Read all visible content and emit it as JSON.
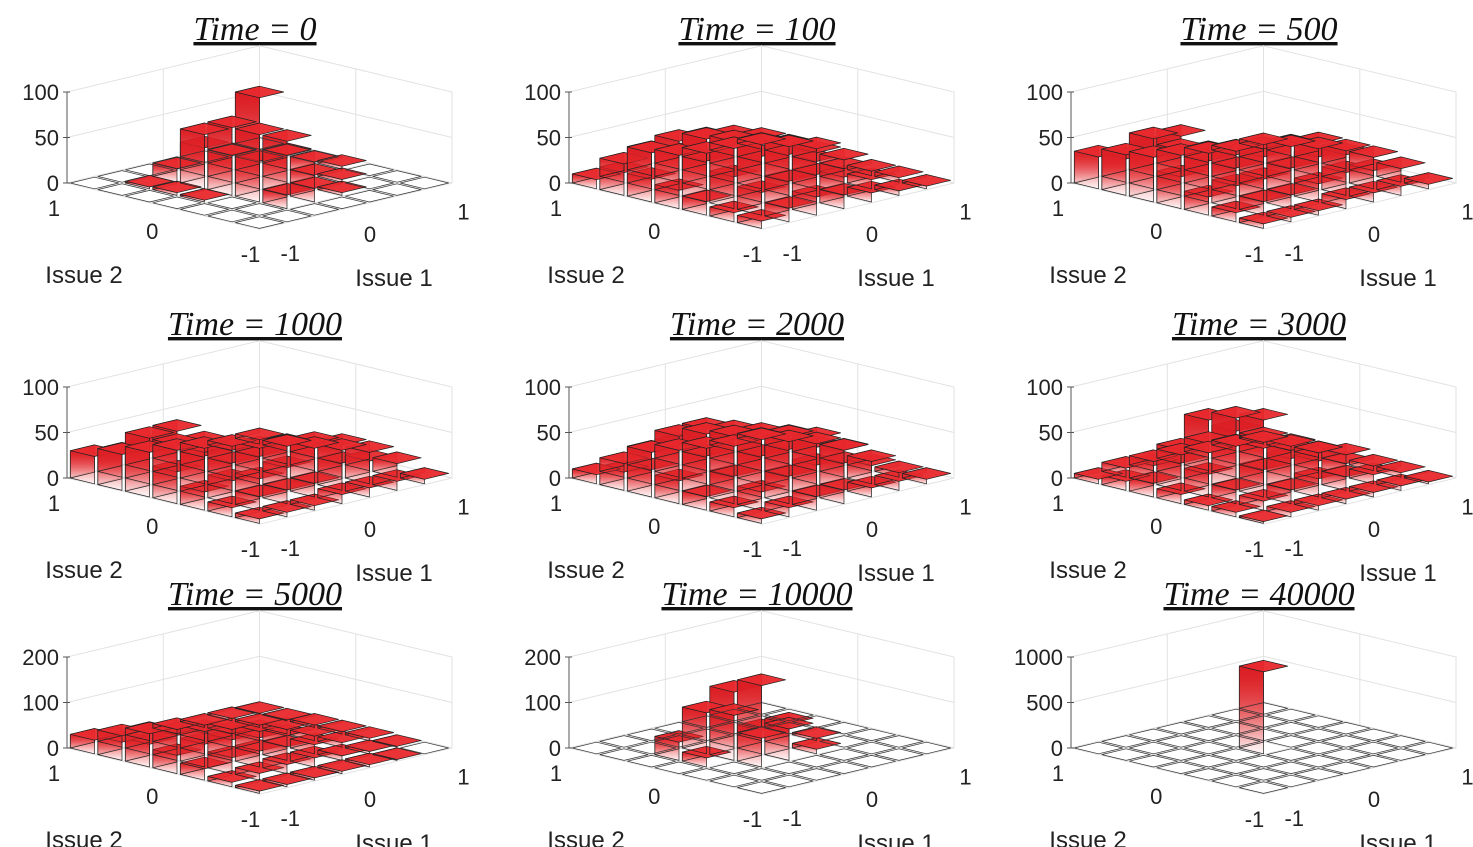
{
  "figure": {
    "xlabel": "Issue 1",
    "ylabel": "Issue 2",
    "x_ticks": [
      "-1",
      "0",
      "1"
    ],
    "y_ticks": [
      "1",
      "0",
      "-1"
    ],
    "bar_color": "#e8282c"
  },
  "chart_data": [
    {
      "type": "bar3d",
      "title": "Time = 0",
      "zlim": [
        0,
        100
      ],
      "z_ticks": [
        "0",
        "50",
        "100"
      ],
      "grid": true,
      "values": [
        [
          0,
          0,
          0,
          0,
          0,
          0,
          0
        ],
        [
          0,
          2,
          3,
          2,
          0,
          0,
          0
        ],
        [
          0,
          15,
          45,
          45,
          45,
          15,
          0
        ],
        [
          0,
          45,
          60,
          100,
          45,
          15,
          0
        ],
        [
          0,
          15,
          45,
          45,
          15,
          3,
          0
        ],
        [
          0,
          0,
          15,
          15,
          3,
          0,
          0
        ],
        [
          0,
          0,
          0,
          3,
          0,
          0,
          0
        ]
      ]
    },
    {
      "type": "bar3d",
      "title": "Time = 100",
      "zlim": [
        0,
        100
      ],
      "z_ticks": [
        "0",
        "50",
        "100"
      ],
      "grid": true,
      "values": [
        [
          10,
          25,
          25,
          20,
          15,
          10,
          8
        ],
        [
          20,
          40,
          45,
          45,
          35,
          25,
          15
        ],
        [
          25,
          45,
          55,
          55,
          50,
          30,
          20
        ],
        [
          15,
          40,
          50,
          50,
          45,
          30,
          15
        ],
        [
          10,
          30,
          40,
          40,
          30,
          20,
          10
        ],
        [
          8,
          20,
          25,
          25,
          15,
          10,
          5
        ],
        [
          5,
          10,
          15,
          10,
          5,
          5,
          3
        ]
      ]
    },
    {
      "type": "bar3d",
      "title": "Time = 500",
      "zlim": [
        0,
        100
      ],
      "z_ticks": [
        "0",
        "50",
        "100"
      ],
      "grid": true,
      "values": [
        [
          35,
          40,
          60,
          35,
          20,
          10,
          5
        ],
        [
          30,
          55,
          65,
          45,
          25,
          15,
          5
        ],
        [
          20,
          35,
          40,
          30,
          25,
          15,
          5
        ],
        [
          15,
          25,
          30,
          35,
          30,
          20,
          10
        ],
        [
          10,
          20,
          30,
          40,
          35,
          25,
          10
        ],
        [
          5,
          15,
          25,
          35,
          30,
          20,
          10
        ],
        [
          5,
          10,
          15,
          20,
          20,
          15,
          5
        ]
      ]
    },
    {
      "type": "bar3d",
      "title": "Time = 1000",
      "zlim": [
        0,
        100
      ],
      "z_ticks": [
        "0",
        "50",
        "100"
      ],
      "grid": true,
      "values": [
        [
          30,
          40,
          55,
          35,
          20,
          10,
          5
        ],
        [
          25,
          50,
          65,
          45,
          25,
          15,
          5
        ],
        [
          20,
          35,
          45,
          30,
          20,
          15,
          5
        ],
        [
          15,
          20,
          30,
          30,
          25,
          15,
          10
        ],
        [
          10,
          15,
          25,
          35,
          40,
          30,
          10
        ],
        [
          5,
          10,
          20,
          30,
          35,
          25,
          10
        ],
        [
          5,
          5,
          10,
          15,
          20,
          15,
          5
        ]
      ]
    },
    {
      "type": "bar3d",
      "title": "Time = 2000",
      "zlim": [
        0,
        100
      ],
      "z_ticks": [
        "0",
        "50",
        "100"
      ],
      "grid": true,
      "values": [
        [
          10,
          20,
          30,
          25,
          15,
          10,
          5
        ],
        [
          15,
          35,
          50,
          45,
          30,
          20,
          10
        ],
        [
          20,
          45,
          60,
          55,
          45,
          30,
          15
        ],
        [
          15,
          40,
          50,
          50,
          45,
          35,
          15
        ],
        [
          10,
          30,
          40,
          45,
          40,
          30,
          10
        ],
        [
          5,
          20,
          30,
          35,
          30,
          20,
          10
        ],
        [
          5,
          10,
          15,
          15,
          10,
          5,
          5
        ]
      ]
    },
    {
      "type": "bar3d",
      "title": "Time = 3000",
      "zlim": [
        0,
        100
      ],
      "z_ticks": [
        "0",
        "50",
        "100"
      ],
      "grid": true,
      "values": [
        [
          5,
          10,
          15,
          10,
          5,
          5,
          2
        ],
        [
          10,
          20,
          30,
          25,
          15,
          10,
          5
        ],
        [
          10,
          30,
          70,
          65,
          30,
          15,
          5
        ],
        [
          10,
          30,
          65,
          70,
          35,
          20,
          5
        ],
        [
          5,
          20,
          35,
          35,
          25,
          15,
          5
        ],
        [
          5,
          10,
          15,
          20,
          15,
          10,
          5
        ],
        [
          2,
          5,
          5,
          10,
          5,
          5,
          2
        ]
      ]
    },
    {
      "type": "bar3d",
      "title": "Time = 5000",
      "zlim": [
        0,
        200
      ],
      "z_ticks": [
        "0",
        "100",
        "200"
      ],
      "grid": true,
      "values": [
        [
          30,
          40,
          50,
          40,
          25,
          10,
          5
        ],
        [
          25,
          45,
          55,
          50,
          35,
          15,
          5
        ],
        [
          15,
          30,
          45,
          45,
          35,
          20,
          5
        ],
        [
          10,
          20,
          30,
          35,
          30,
          20,
          5
        ],
        [
          5,
          10,
          20,
          25,
          20,
          10,
          5
        ],
        [
          5,
          5,
          10,
          10,
          10,
          5,
          2
        ],
        [
          2,
          2,
          5,
          5,
          5,
          2,
          0
        ]
      ]
    },
    {
      "type": "bar3d",
      "title": "Time = 10000",
      "zlim": [
        0,
        200
      ],
      "z_ticks": [
        "0",
        "100",
        "200"
      ],
      "grid": true,
      "values": [
        [
          0,
          0,
          0,
          0,
          0,
          0,
          0
        ],
        [
          0,
          0,
          40,
          20,
          0,
          0,
          0
        ],
        [
          0,
          0,
          90,
          150,
          80,
          0,
          0
        ],
        [
          0,
          0,
          70,
          150,
          80,
          0,
          0
        ],
        [
          0,
          0,
          5,
          40,
          10,
          0,
          0
        ],
        [
          0,
          0,
          0,
          5,
          0,
          0,
          0
        ],
        [
          0,
          0,
          0,
          0,
          0,
          0,
          0
        ]
      ]
    },
    {
      "type": "bar3d",
      "title": "Time = 40000",
      "zlim": [
        0,
        1000
      ],
      "z_ticks": [
        "0",
        "500",
        "1000"
      ],
      "grid": true,
      "values": [
        [
          0,
          0,
          0,
          0,
          0,
          0,
          0
        ],
        [
          0,
          0,
          0,
          0,
          0,
          0,
          0
        ],
        [
          0,
          0,
          0,
          0,
          0,
          0,
          0
        ],
        [
          0,
          0,
          0,
          900,
          0,
          0,
          0
        ],
        [
          0,
          0,
          0,
          0,
          0,
          0,
          0
        ],
        [
          0,
          0,
          0,
          0,
          0,
          0,
          0
        ],
        [
          0,
          0,
          0,
          0,
          0,
          0,
          0
        ]
      ]
    }
  ]
}
